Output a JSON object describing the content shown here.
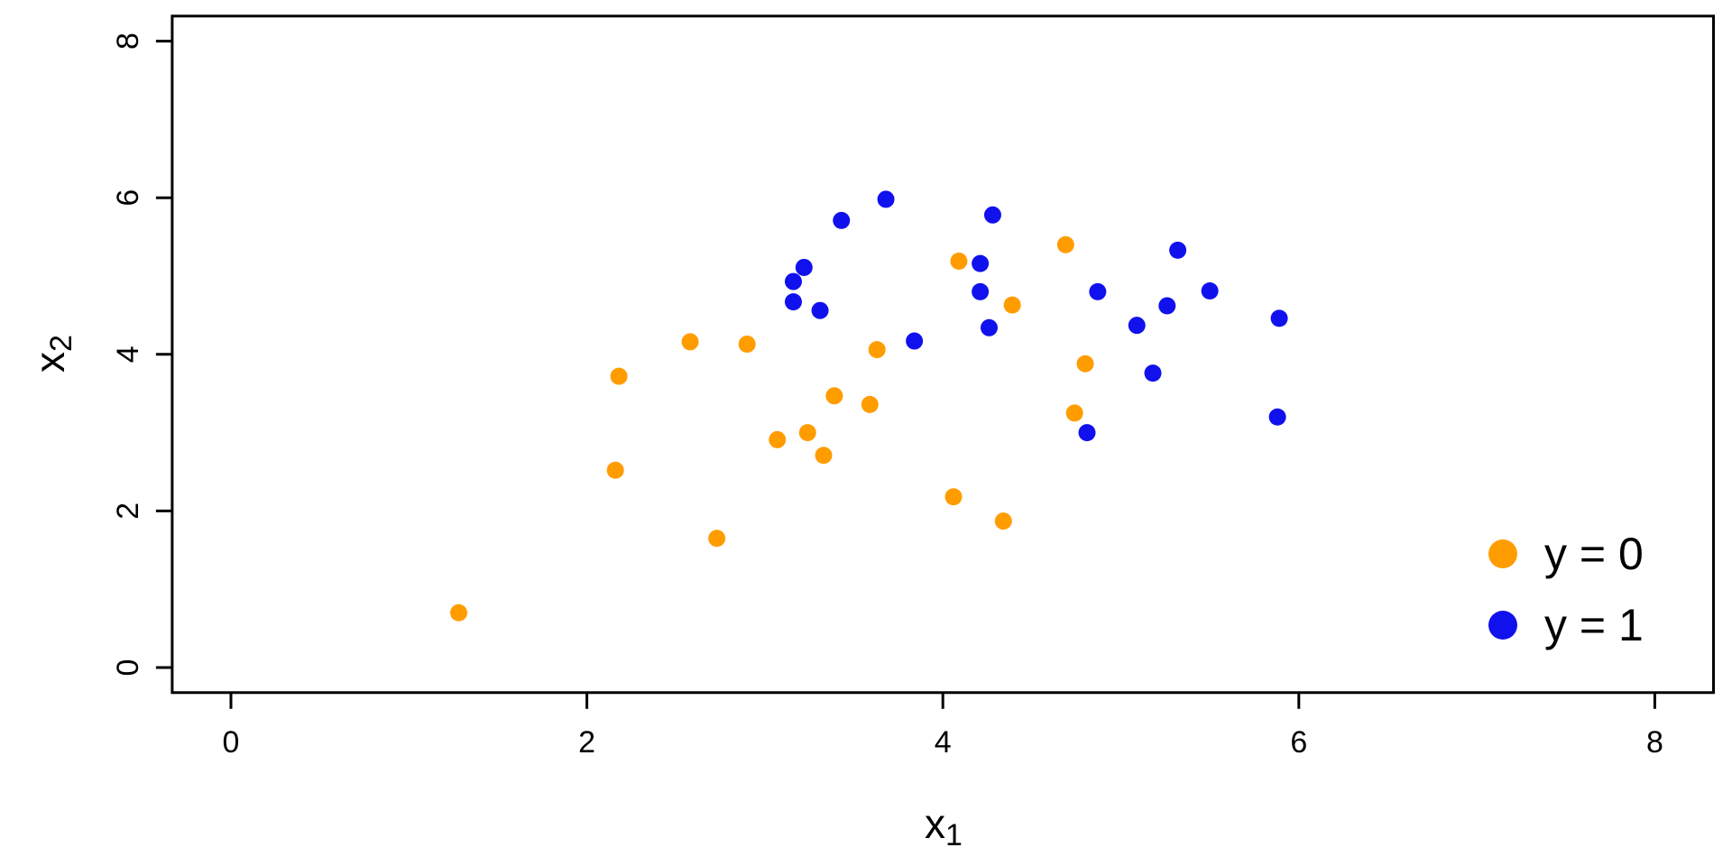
{
  "chart_data": {
    "type": "scatter",
    "title": "",
    "xlabel_base": "x",
    "xlabel_sub": "1",
    "ylabel_base": "x",
    "ylabel_sub": "2",
    "xlim": [
      -0.33,
      8.33
    ],
    "ylim": [
      -0.32,
      8.32
    ],
    "x_ticks": [
      "0",
      "2",
      "4",
      "6",
      "8"
    ],
    "y_ticks": [
      "0",
      "2",
      "4",
      "6",
      "8"
    ],
    "grid": false,
    "axis_color": "#000000",
    "background": "#ffffff",
    "legend": {
      "position": "bottom-right",
      "frame": false,
      "entries": [
        {
          "label": "y = 0",
          "color": "#FF9D00"
        },
        {
          "label": "y = 1",
          "color": "#1111EE"
        }
      ]
    },
    "series": [
      {
        "name": "y = 0",
        "color": "#FF9D00",
        "points": [
          [
            1.28,
            0.7
          ],
          [
            2.16,
            2.52
          ],
          [
            2.18,
            3.72
          ],
          [
            2.58,
            4.16
          ],
          [
            2.73,
            1.65
          ],
          [
            2.9,
            4.13
          ],
          [
            3.07,
            2.91
          ],
          [
            3.24,
            3.0
          ],
          [
            3.33,
            2.71
          ],
          [
            3.39,
            3.47
          ],
          [
            3.59,
            3.36
          ],
          [
            3.63,
            4.06
          ],
          [
            4.06,
            2.18
          ],
          [
            4.09,
            5.19
          ],
          [
            4.34,
            1.87
          ],
          [
            4.39,
            4.63
          ],
          [
            4.69,
            5.4
          ],
          [
            4.74,
            3.25
          ],
          [
            4.8,
            3.88
          ]
        ]
      },
      {
        "name": "y = 1",
        "color": "#1111EE",
        "points": [
          [
            3.16,
            4.67
          ],
          [
            3.16,
            4.93
          ],
          [
            3.22,
            5.11
          ],
          [
            3.31,
            4.56
          ],
          [
            3.43,
            5.71
          ],
          [
            3.68,
            5.98
          ],
          [
            3.84,
            4.17
          ],
          [
            4.21,
            4.8
          ],
          [
            4.21,
            5.16
          ],
          [
            4.26,
            4.34
          ],
          [
            4.28,
            5.78
          ],
          [
            4.81,
            3.0
          ],
          [
            4.87,
            4.8
          ],
          [
            5.09,
            4.37
          ],
          [
            5.18,
            3.76
          ],
          [
            5.26,
            4.62
          ],
          [
            5.32,
            5.33
          ],
          [
            5.5,
            4.81
          ],
          [
            5.88,
            3.2
          ],
          [
            5.89,
            4.46
          ]
        ]
      }
    ]
  },
  "layout_note": ""
}
